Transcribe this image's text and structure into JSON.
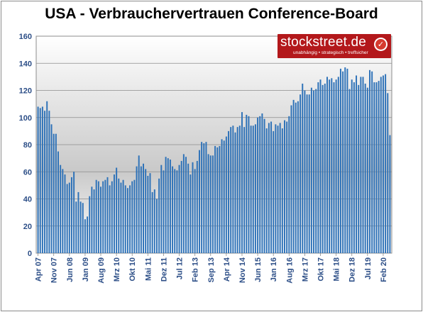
{
  "chart_data": {
    "type": "bar",
    "title": "USA - Verbrauchervertrauen Conference-Board",
    "ylim": [
      0,
      160
    ],
    "yticks": [
      0,
      20,
      40,
      60,
      80,
      100,
      120,
      140,
      160
    ],
    "grid": true,
    "xlabels": [
      "Apr 07",
      "Nov 07",
      "Jun 08",
      "Jan 09",
      "Aug 09",
      "Mrz 10",
      "Okt 10",
      "Mai 11",
      "Dez 11",
      "Jul 12",
      "Feb 13",
      "Sep 13",
      "Apr 14",
      "Nov 14",
      "Jun 15",
      "Jan 16",
      "Aug 16",
      "Mrz 17",
      "Okt 17",
      "Mai 18",
      "Dez 18",
      "Jul 19",
      "Feb 20"
    ],
    "series": [
      {
        "color": "#2e72b8",
        "start": "2007-04",
        "values": [
          108,
          107,
          108,
          105,
          112,
          105,
          95,
          88,
          88,
          75,
          65,
          62,
          58,
          51,
          52,
          56,
          60,
          38,
          45,
          38,
          37,
          25,
          27,
          42,
          49,
          47,
          54,
          53,
          49,
          53,
          54,
          56,
          50,
          53,
          58,
          63,
          55,
          52,
          54,
          50,
          48,
          50,
          53,
          54,
          64,
          72,
          64,
          66,
          62,
          57,
          59,
          45,
          47,
          40,
          55,
          65,
          61,
          71,
          70,
          69,
          64,
          62,
          61,
          65,
          68,
          73,
          71,
          66,
          58,
          67,
          62,
          68,
          76,
          82,
          81,
          82,
          73,
          72,
          72,
          79,
          78,
          79,
          84,
          83,
          86,
          90,
          93,
          94,
          89,
          93,
          94,
          104,
          93,
          102,
          101,
          94,
          94,
          95,
          100,
          101,
          103,
          99,
          92,
          96,
          97,
          90,
          95,
          94,
          96,
          92,
          98,
          97,
          101,
          109,
          113,
          111,
          112,
          117,
          125,
          120,
          117,
          117,
          122,
          120,
          121,
          126,
          128,
          124,
          125,
          130,
          128,
          129,
          126,
          128,
          130,
          136,
          134,
          137,
          136,
          121,
          128,
          126,
          131,
          124,
          130,
          130,
          125,
          122,
          135,
          134,
          126,
          126,
          127,
          130,
          131,
          132,
          118,
          87
        ]
      }
    ]
  },
  "logo": {
    "name": "stockstreet.de",
    "tagline": "unabhängig • strategisch • treffsicher",
    "badge": "✓"
  }
}
